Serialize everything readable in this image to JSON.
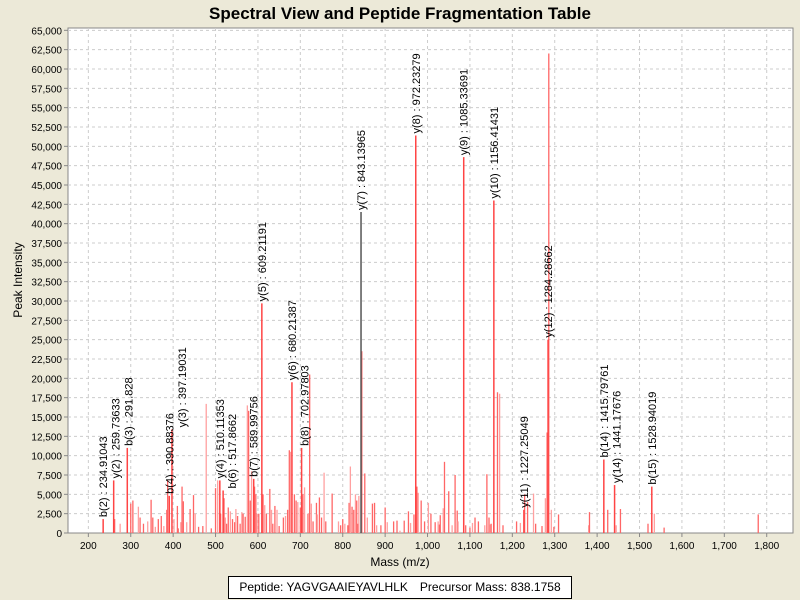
{
  "chart_data": {
    "type": "bar",
    "title": "Spectral View and Peptide Fragmentation Table",
    "xlabel": "Mass (m/z)",
    "ylabel": "Peak Intensity",
    "xlim": [
      152,
      1862
    ],
    "ylim": [
      0,
      65300
    ],
    "x_ticks": [
      200,
      300,
      400,
      500,
      600,
      700,
      800,
      900,
      1000,
      1100,
      1200,
      1300,
      1400,
      1500,
      1600,
      1700,
      1800
    ],
    "x_tick_labels": [
      "200",
      "300",
      "400",
      "500",
      "600",
      "700",
      "800",
      "900",
      "1,000",
      "1,100",
      "1,200",
      "1,300",
      "1,400",
      "1,500",
      "1,600",
      "1,700",
      "1,800"
    ],
    "y_ticks": [
      0,
      2500,
      5000,
      7500,
      10000,
      12500,
      15000,
      17500,
      20000,
      22500,
      25000,
      27500,
      30000,
      32500,
      35000,
      37500,
      40000,
      42500,
      45000,
      47500,
      50000,
      52500,
      55000,
      57500,
      60000,
      62500,
      65000
    ],
    "y_tick_labels": [
      "0",
      "2,500",
      "5,000",
      "7,500",
      "10,000",
      "12,500",
      "15,000",
      "17,500",
      "20,000",
      "22,500",
      "25,000",
      "27,500",
      "30,000",
      "32,500",
      "35,000",
      "37,500",
      "40,000",
      "42,500",
      "45,000",
      "47,500",
      "50,000",
      "52,500",
      "55,000",
      "57,500",
      "60,000",
      "62,500",
      "65,000"
    ],
    "grid": true,
    "colors": {
      "peak": "#FF6666",
      "peak_light": "#FFA0A0",
      "annotated_peak": "#FF4444",
      "y7_peak": "#555555",
      "background": "#ECE9D8",
      "plot_bg": "#FFFFFF"
    },
    "peaks": [
      [
        262,
        1800
      ],
      [
        275,
        1200
      ],
      [
        300,
        3800
      ],
      [
        305,
        4200
      ],
      [
        318,
        3400
      ],
      [
        322,
        2000
      ],
      [
        330,
        1200
      ],
      [
        340,
        1500
      ],
      [
        348,
        4300
      ],
      [
        352,
        2000
      ],
      [
        358,
        800
      ],
      [
        365,
        1800
      ],
      [
        372,
        2200
      ],
      [
        378,
        900
      ],
      [
        385,
        3000
      ],
      [
        387,
        6900
      ],
      [
        402,
        1800
      ],
      [
        410,
        3500
      ],
      [
        412,
        600
      ],
      [
        418,
        1400
      ],
      [
        421,
        6000
      ],
      [
        424,
        4100
      ],
      [
        432,
        1400
      ],
      [
        440,
        3100
      ],
      [
        448,
        4900
      ],
      [
        452,
        2500
      ],
      [
        460,
        800
      ],
      [
        470,
        900
      ],
      [
        478,
        16700
      ],
      [
        490,
        600
      ],
      [
        500,
        5800
      ],
      [
        505,
        6800
      ],
      [
        512,
        2500
      ],
      [
        520,
        4500
      ],
      [
        523,
        2000
      ],
      [
        526,
        1200
      ],
      [
        530,
        3300
      ],
      [
        535,
        2800
      ],
      [
        540,
        1800
      ],
      [
        545,
        1400
      ],
      [
        548,
        3100
      ],
      [
        552,
        2200
      ],
      [
        558,
        1200
      ],
      [
        562,
        2700
      ],
      [
        565,
        2500
      ],
      [
        570,
        2100
      ],
      [
        575,
        16500
      ],
      [
        578,
        15800
      ],
      [
        582,
        4200
      ],
      [
        585,
        8000
      ],
      [
        592,
        6000
      ],
      [
        595,
        5000
      ],
      [
        598,
        2500
      ],
      [
        602,
        2500
      ],
      [
        612,
        5000
      ],
      [
        616,
        3600
      ],
      [
        620,
        2500
      ],
      [
        628,
        5700
      ],
      [
        632,
        3000
      ],
      [
        635,
        1200
      ],
      [
        640,
        3500
      ],
      [
        645,
        3000
      ],
      [
        650,
        900
      ],
      [
        660,
        2000
      ],
      [
        665,
        2200
      ],
      [
        670,
        3000
      ],
      [
        674,
        10700
      ],
      [
        677,
        10500
      ],
      [
        686,
        5000
      ],
      [
        690,
        4200
      ],
      [
        694,
        4000
      ],
      [
        700,
        3300
      ],
      [
        706,
        5000
      ],
      [
        710,
        5900
      ],
      [
        718,
        2500
      ],
      [
        722,
        20500
      ],
      [
        726,
        3800
      ],
      [
        730,
        1500
      ],
      [
        738,
        3900
      ],
      [
        740,
        2400
      ],
      [
        745,
        4600
      ],
      [
        750,
        2000
      ],
      [
        756,
        7800
      ],
      [
        760,
        1500
      ],
      [
        775,
        5100
      ],
      [
        790,
        1500
      ],
      [
        795,
        1000
      ],
      [
        800,
        1800
      ],
      [
        805,
        1200
      ],
      [
        812,
        1000
      ],
      [
        815,
        3900
      ],
      [
        818,
        8600
      ],
      [
        822,
        3400
      ],
      [
        826,
        3000
      ],
      [
        830,
        5000
      ],
      [
        833,
        4200
      ],
      [
        836,
        1200
      ],
      [
        838,
        4800
      ],
      [
        845,
        23500
      ],
      [
        852,
        7700
      ],
      [
        858,
        2000
      ],
      [
        870,
        3800
      ],
      [
        875,
        3900
      ],
      [
        880,
        1000
      ],
      [
        890,
        1000
      ],
      [
        900,
        3300
      ],
      [
        905,
        1400
      ],
      [
        920,
        1500
      ],
      [
        928,
        1600
      ],
      [
        935,
        300
      ],
      [
        945,
        1600
      ],
      [
        955,
        2800
      ],
      [
        960,
        1300
      ],
      [
        968,
        2400
      ],
      [
        975,
        6000
      ],
      [
        978,
        5200
      ],
      [
        985,
        4200
      ],
      [
        993,
        1500
      ],
      [
        1002,
        3900
      ],
      [
        1008,
        2500
      ],
      [
        1018,
        1400
      ],
      [
        1025,
        1500
      ],
      [
        1028,
        1100
      ],
      [
        1030,
        2300
      ],
      [
        1037,
        3200
      ],
      [
        1040,
        9200
      ],
      [
        1050,
        5400
      ],
      [
        1058,
        1000
      ],
      [
        1065,
        7500
      ],
      [
        1070,
        2900
      ],
      [
        1072,
        1500
      ],
      [
        1090,
        1000
      ],
      [
        1100,
        700
      ],
      [
        1106,
        1300
      ],
      [
        1112,
        2000
      ],
      [
        1120,
        1500
      ],
      [
        1135,
        1000
      ],
      [
        1140,
        7600
      ],
      [
        1145,
        2000
      ],
      [
        1148,
        1100
      ],
      [
        1150,
        1200
      ],
      [
        1165,
        18200
      ],
      [
        1170,
        18000
      ],
      [
        1178,
        1000
      ],
      [
        1210,
        1500
      ],
      [
        1219,
        1300
      ],
      [
        1229,
        5000
      ],
      [
        1236,
        4000
      ],
      [
        1250,
        5100
      ],
      [
        1255,
        1200
      ],
      [
        1270,
        900
      ],
      [
        1278,
        4500
      ],
      [
        1282,
        13000
      ],
      [
        1286,
        62000
      ],
      [
        1292,
        3000
      ],
      [
        1298,
        800
      ],
      [
        1309,
        2400
      ],
      [
        1380,
        1000
      ],
      [
        1382,
        2700
      ],
      [
        1425,
        3000
      ],
      [
        1445,
        1000
      ],
      [
        1455,
        3100
      ],
      [
        1520,
        1200
      ],
      [
        1535,
        2500
      ],
      [
        1558,
        700
      ],
      [
        1780,
        2400
      ]
    ],
    "annotations": [
      {
        "label": "b(2) : 234.91043",
        "mz": 234.91043,
        "intensity": 1800
      },
      {
        "label": "y(2) : 259.73633",
        "mz": 259.73633,
        "intensity": 6800
      },
      {
        "label": "b(3) : 291.828",
        "mz": 291.828,
        "intensity": 11000
      },
      {
        "label": "b(4) : 390.88376",
        "mz": 390.88376,
        "intensity": 4800
      },
      {
        "label": "y(3) : 397.19031",
        "mz": 397.19031,
        "intensity": 13400
      },
      {
        "label": "y(4) : 510.11353",
        "mz": 510.11353,
        "intensity": 6800
      },
      {
        "label": "b(6) : 517.8662",
        "mz": 517.8662,
        "intensity": 5500
      },
      {
        "label": "b(7) : 589.99756",
        "mz": 589.99756,
        "intensity": 7000
      },
      {
        "label": "y(5) : 609.21191",
        "mz": 609.21191,
        "intensity": 29700
      },
      {
        "label": "y(6) : 680.21387",
        "mz": 680.21387,
        "intensity": 19500
      },
      {
        "label": "b(8) : 702.97803",
        "mz": 702.97803,
        "intensity": 11000
      },
      {
        "label": "y(7) : 843.13965",
        "mz": 843.13965,
        "intensity": 41500
      },
      {
        "label": "y(8) : 972.23279",
        "mz": 972.23279,
        "intensity": 51400
      },
      {
        "label": "y(9) : 1085.33691",
        "mz": 1085.33691,
        "intensity": 48600
      },
      {
        "label": "y(10) : 1156.41431",
        "mz": 1156.41431,
        "intensity": 43000
      },
      {
        "label": "y(11) : 1227.25049",
        "mz": 1227.25049,
        "intensity": 3000
      },
      {
        "label": "y(12) : 1284.28662",
        "mz": 1284.28662,
        "intensity": 25000
      },
      {
        "label": "b(14) : 1415.79761",
        "mz": 1415.79761,
        "intensity": 9500
      },
      {
        "label": "y(14) : 1441.17676",
        "mz": 1441.17676,
        "intensity": 6200
      },
      {
        "label": "b(15) : 1528.94019",
        "mz": 1528.94019,
        "intensity": 6000
      }
    ]
  },
  "legend": {
    "peptide": "Peptide: YAGVGAAIEYAVLHLK",
    "precursor": "Precursor Mass: 838.1758"
  }
}
